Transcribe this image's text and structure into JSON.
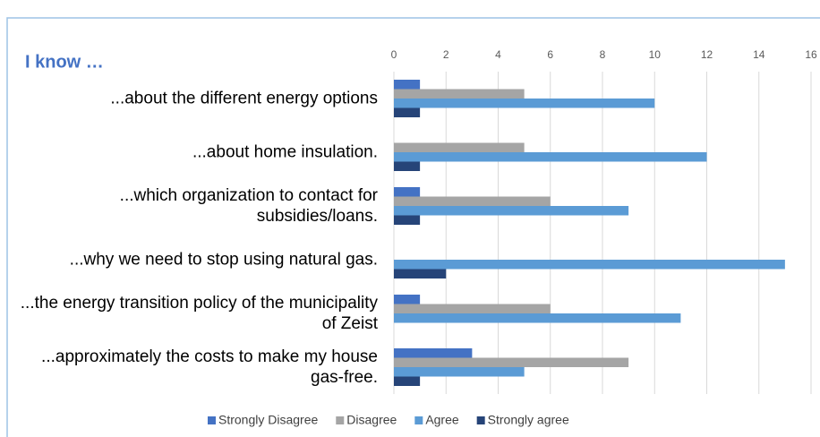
{
  "chart_data": {
    "type": "bar",
    "orientation": "horizontal",
    "title": "I know …",
    "categories": [
      "...about the different energy options",
      "...about home insulation.",
      "...which organization to contact for subsidies/loans.",
      "...why we need to stop using natural gas.",
      "...the energy transition policy of the municipality of Zeist",
      "...approximately the costs to make my house gas-free."
    ],
    "series": [
      {
        "name": "Strongly Disagree",
        "color": "#4472c4",
        "values": [
          1,
          0,
          1,
          0,
          1,
          3
        ]
      },
      {
        "name": "Disagree",
        "color": "#a5a5a5",
        "values": [
          5,
          5,
          6,
          0,
          6,
          9
        ]
      },
      {
        "name": "Agree",
        "color": "#5b9bd5",
        "values": [
          10,
          12,
          9,
          15,
          11,
          5
        ]
      },
      {
        "name": "Strongly agree",
        "color": "#264478",
        "values": [
          1,
          1,
          1,
          2,
          0,
          1
        ]
      }
    ],
    "xlim": [
      0,
      16
    ],
    "xticks": [
      0,
      2,
      4,
      6,
      8,
      10,
      12,
      14,
      16
    ],
    "grid": true,
    "legend": "bottom"
  }
}
